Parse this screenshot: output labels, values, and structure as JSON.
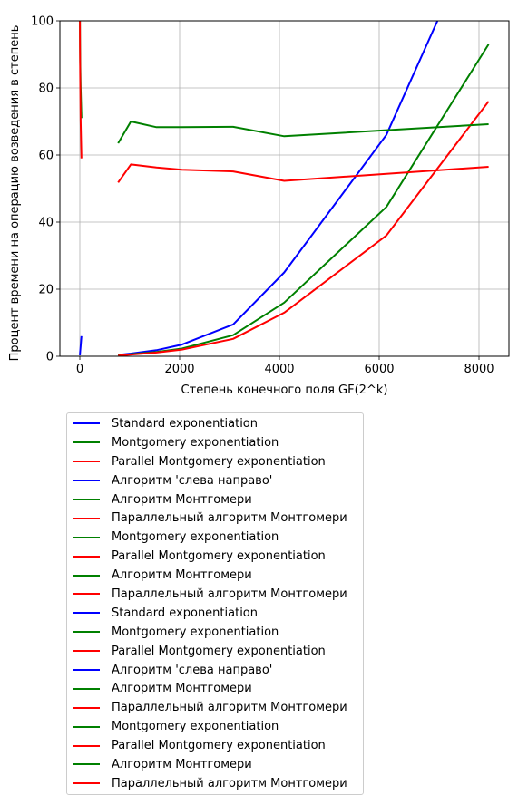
{
  "chart_data": {
    "type": "line",
    "xlabel": "Степень конечного поля GF(2^k)",
    "ylabel": "Процент времени на операцию возведения в степень",
    "xlim": [
      -400,
      8600
    ],
    "ylim": [
      0,
      100
    ],
    "xticks": [
      0,
      2000,
      4000,
      6000,
      8000
    ],
    "yticks": [
      0,
      20,
      40,
      60,
      80,
      100
    ],
    "grid": true,
    "legend_position": "below the plot",
    "colors": {
      "blue": "#0000ff",
      "green": "#008000",
      "red": "#ff0000"
    },
    "series": [
      {
        "name": "Standard exponentiation",
        "color": "#0000ff",
        "x": [
          2,
          4,
          8,
          16,
          32
        ],
        "y": [
          0.3,
          0.8,
          1.5,
          3.0,
          6.0
        ]
      },
      {
        "name": "Montgomery exponentiation",
        "color": "#008000",
        "x": [
          2,
          4,
          8,
          16,
          32
        ],
        "y": [
          100,
          95,
          88,
          80,
          71
        ]
      },
      {
        "name": "Parallel Montgomery exponentiation",
        "color": "#ff0000",
        "x": [
          2,
          4,
          8,
          16,
          32
        ],
        "y": [
          100,
          92,
          84,
          70,
          59
        ]
      },
      {
        "name": "Алгоритм 'слева направо'",
        "color": "#0000ff",
        "x": [
          768,
          1024,
          1536,
          2048,
          3072,
          4096,
          6144,
          7168
        ],
        "y": [
          0.4,
          0.8,
          1.8,
          3.5,
          9.5,
          25,
          66,
          100
        ]
      },
      {
        "name": "Алгоритм Монтгомери",
        "color": "#008000",
        "x": [
          768,
          1024,
          1536,
          2048,
          3072,
          4096,
          6144,
          8192
        ],
        "y": [
          0.3,
          0.6,
          1.3,
          2.3,
          6.3,
          16,
          44.5,
          93
        ]
      },
      {
        "name": "Параллельный алгоритм Монтгомери",
        "color": "#ff0000",
        "x": [
          768,
          1024,
          1536,
          2048,
          3072,
          4096,
          6144,
          8192
        ],
        "y": [
          0.2,
          0.5,
          1.1,
          2.0,
          5.2,
          13,
          36,
          76
        ]
      },
      {
        "name": "Montgomery exponentiation",
        "color": "#008000",
        "x": [
          768,
          1024,
          1536,
          2048,
          3072,
          4096,
          8192
        ],
        "y": [
          63.5,
          70,
          68.3,
          68.3,
          68.4,
          65.6,
          69.2
        ]
      },
      {
        "name": "Parallel Montgomery exponentiation",
        "color": "#ff0000",
        "x": [
          768,
          1024,
          1536,
          2048,
          3072,
          4096,
          8192
        ],
        "y": [
          51.8,
          57.2,
          56.3,
          55.6,
          55.1,
          52.3,
          56.5
        ]
      }
    ],
    "legend": [
      {
        "label": "Standard exponentiation",
        "color": "#0000ff"
      },
      {
        "label": "Montgomery exponentiation",
        "color": "#008000"
      },
      {
        "label": "Parallel Montgomery exponentiation",
        "color": "#ff0000"
      },
      {
        "label": "Алгоритм 'слева направо'",
        "color": "#0000ff"
      },
      {
        "label": "Алгоритм Монтгомери",
        "color": "#008000"
      },
      {
        "label": "Параллельный алгоритм Монтгомери",
        "color": "#ff0000"
      },
      {
        "label": "Montgomery exponentiation",
        "color": "#008000"
      },
      {
        "label": "Parallel Montgomery exponentiation",
        "color": "#ff0000"
      },
      {
        "label": "Алгоритм Монтгомери",
        "color": "#008000"
      },
      {
        "label": "Параллельный алгоритм Монтгомери",
        "color": "#ff0000"
      },
      {
        "label": "Standard exponentiation",
        "color": "#0000ff"
      },
      {
        "label": "Montgomery exponentiation",
        "color": "#008000"
      },
      {
        "label": "Parallel Montgomery exponentiation",
        "color": "#ff0000"
      },
      {
        "label": "Алгоритм 'слева направо'",
        "color": "#0000ff"
      },
      {
        "label": "Алгоритм Монтгомери",
        "color": "#008000"
      },
      {
        "label": "Параллельный алгоритм Монтгомери",
        "color": "#ff0000"
      },
      {
        "label": "Montgomery exponentiation",
        "color": "#008000"
      },
      {
        "label": "Parallel Montgomery exponentiation",
        "color": "#ff0000"
      },
      {
        "label": "Алгоритм Монтгомери",
        "color": "#008000"
      },
      {
        "label": "Параллельный алгоритм Монтгомери",
        "color": "#ff0000"
      }
    ]
  }
}
